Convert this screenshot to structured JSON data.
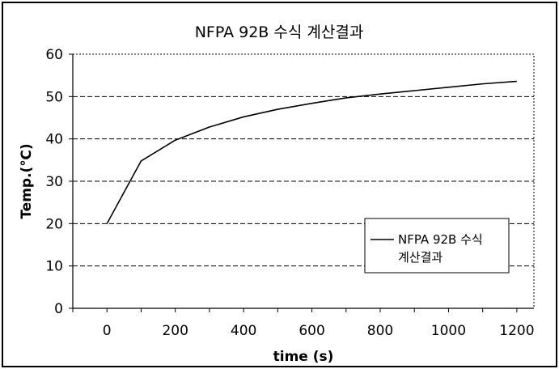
{
  "chart_data": {
    "type": "line",
    "title": "NFPA 92B 수식 계산결과",
    "xlabel": "time (s)",
    "ylabel": "Temp.(℃)",
    "xlim": [
      -100,
      1250
    ],
    "ylim": [
      0,
      60
    ],
    "x_ticks": [
      0,
      200,
      400,
      600,
      800,
      1000,
      1200
    ],
    "y_ticks": [
      0,
      10,
      20,
      30,
      40,
      50,
      60
    ],
    "grid": "horizontal dashed",
    "legend_position": "right",
    "legend_lines": [
      "NFPA 92B 수식",
      "계산결과"
    ],
    "series": [
      {
        "name": "NFPA 92B 수식 계산결과",
        "color": "#000000",
        "x": [
          0,
          100,
          200,
          300,
          400,
          500,
          600,
          700,
          800,
          900,
          1000,
          1100,
          1200
        ],
        "y": [
          20,
          34.8,
          39.7,
          42.8,
          45.2,
          47.0,
          48.4,
          49.7,
          50.6,
          51.4,
          52.2,
          53.0,
          53.6
        ]
      }
    ]
  }
}
